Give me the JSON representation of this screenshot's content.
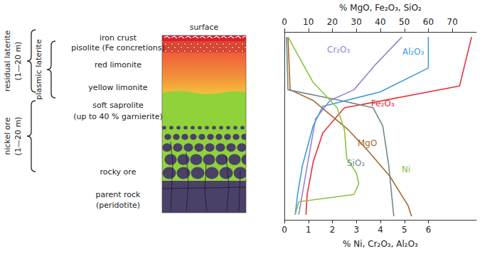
{
  "chart_data": {
    "type": "line",
    "x_label": "% Ni, Cr₂O₃, Al₂O₃",
    "x2_label": "% MgO, Fe₂O₃, SiO₂",
    "xlim": [
      0,
      8
    ],
    "xticks": [
      0,
      1,
      2,
      3,
      4,
      5,
      6
    ],
    "x2lim": [
      0,
      80
    ],
    "x2ticks": [
      0,
      10,
      20,
      30,
      40,
      50,
      60,
      70
    ],
    "ylim": [
      0,
      100
    ],
    "tick_labels": "x",
    "grid": false,
    "series": [
      {
        "name": "Cr₂O₃",
        "color": "#9b80d4",
        "axis": "x",
        "values": [
          4.9,
          3.8,
          2.9,
          1.9,
          1.3,
          0.9,
          0.6
        ],
        "y": [
          2.7,
          17.3,
          30.8,
          36.5,
          46.2,
          75,
          97.3
        ]
      },
      {
        "name": "Al₂O₃",
        "color": "#3a9be0",
        "axis": "x",
        "values": [
          6.0,
          6.0,
          4.0,
          1.6,
          1.2,
          0.75,
          0.55,
          0.45
        ],
        "y": [
          2.7,
          19.2,
          31.9,
          39.6,
          50,
          71.2,
          86.5,
          97.3
        ]
      },
      {
        "name": "Fe₂O₃",
        "color": "#e8303a",
        "axis": "x2",
        "values": [
          78,
          73,
          25,
          16,
          12,
          9.5,
          9
        ],
        "y": [
          2.7,
          28.8,
          40.4,
          53.8,
          69.2,
          86.5,
          97.3
        ]
      },
      {
        "name": "MgO",
        "color": "#a3682c",
        "axis": "x2",
        "values": [
          1.5,
          2.4,
          12,
          26.5,
          35,
          44,
          51.5,
          53
        ],
        "y": [
          2.7,
          30.8,
          36.5,
          51.9,
          63.5,
          76.9,
          92.3,
          98.1
        ]
      },
      {
        "name": "SiO₂",
        "color": "#708888",
        "axis": "x2",
        "values": [
          0.9,
          1.5,
          23.5,
          37,
          41,
          43.5,
          45.6
        ],
        "y": [
          2.7,
          30.8,
          36.5,
          40.4,
          50,
          71.2,
          98.1
        ]
      },
      {
        "name": "Ni",
        "color": "#86c440",
        "axis": "x",
        "values": [
          0.15,
          1.2,
          2.2,
          2.5,
          2.6,
          3.0,
          3.1,
          2.9,
          0.6,
          0.45
        ],
        "y": [
          2.7,
          26.9,
          40.4,
          51.9,
          67.3,
          75,
          80.8,
          86.5,
          90.4,
          97.3
        ]
      }
    ]
  },
  "profile": {
    "surface": "surface",
    "layers": [
      "iron crust",
      "pisolite (Fe concretions)",
      "red limonite",
      "yellow limonite",
      "soft saprolite",
      "(up to 40 % garnierite)",
      "rocky ore",
      "parent rock",
      "(peridotite)"
    ],
    "brackets": [
      {
        "label": "residual laterite",
        "note": "(1—20 m)"
      },
      {
        "label": "plasmic laterite"
      },
      {
        "label": "nickel ore",
        "note": "(1—20 m)"
      }
    ]
  }
}
